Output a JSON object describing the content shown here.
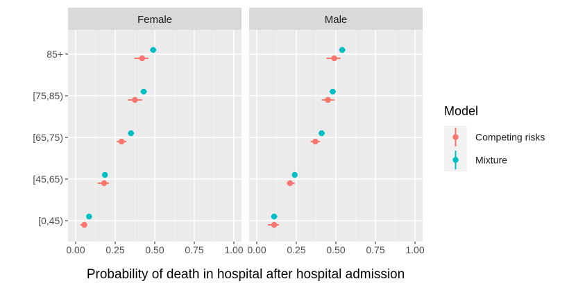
{
  "chart_data": {
    "type": "pointrange",
    "facet_by": "Sex",
    "xlabel": "Probability of death in hospital after hospital admission",
    "ylabel": "",
    "xlim": [
      0,
      1
    ],
    "x_ticks": [
      0,
      0.25,
      0.5,
      0.75,
      1
    ],
    "x_tick_labels": [
      "0.00",
      "0.25",
      "0.50",
      "0.75",
      "1.00"
    ],
    "categories": [
      "[0,45)",
      "[45,65)",
      "[65,75)",
      "[75,85)",
      "85+"
    ],
    "legend": {
      "title": "Model",
      "position": "right",
      "entries": [
        {
          "name": "Competing risks",
          "color": "#F8766D"
        },
        {
          "name": "Mixture",
          "color": "#00BFC4"
        }
      ]
    },
    "panels": [
      {
        "name": "Female",
        "series": [
          {
            "name": "Competing risks",
            "color": "#F8766D",
            "values": [
              0.055,
              0.18,
              0.29,
              0.375,
              0.42
            ],
            "lower": [
              0.03,
              0.14,
              0.26,
              0.33,
              0.37
            ],
            "upper": [
              0.07,
              0.21,
              0.32,
              0.42,
              0.46
            ]
          },
          {
            "name": "Mixture",
            "color": "#00BFC4",
            "values": [
              0.085,
              0.185,
              0.35,
              0.43,
              0.49
            ],
            "lower": [
              0.07,
              0.17,
              0.33,
              0.41,
              0.47
            ],
            "upper": [
              0.1,
              0.2,
              0.37,
              0.45,
              0.51
            ]
          }
        ]
      },
      {
        "name": "Male",
        "series": [
          {
            "name": "Competing risks",
            "color": "#F8766D",
            "values": [
              0.11,
              0.21,
              0.37,
              0.45,
              0.49
            ],
            "lower": [
              0.07,
              0.19,
              0.34,
              0.41,
              0.44
            ],
            "upper": [
              0.14,
              0.24,
              0.4,
              0.49,
              0.53
            ]
          },
          {
            "name": "Mixture",
            "color": "#00BFC4",
            "values": [
              0.11,
              0.24,
              0.41,
              0.48,
              0.54
            ],
            "lower": [
              0.09,
              0.23,
              0.39,
              0.46,
              0.52
            ],
            "upper": [
              0.13,
              0.25,
              0.43,
              0.5,
              0.56
            ]
          }
        ]
      }
    ]
  }
}
